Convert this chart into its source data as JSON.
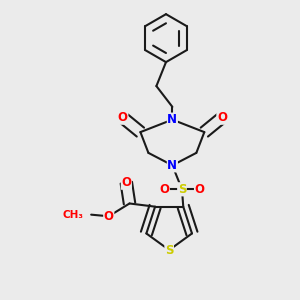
{
  "bg_color": "#ebebeb",
  "bond_color": "#1a1a1a",
  "bond_width": 1.5,
  "atom_colors": {
    "N": "#0000ff",
    "O": "#ff0000",
    "S": "#cccc00",
    "C": "#1a1a1a"
  },
  "font_size_atoms": 8.5,
  "font_size_ch3": 7.5
}
